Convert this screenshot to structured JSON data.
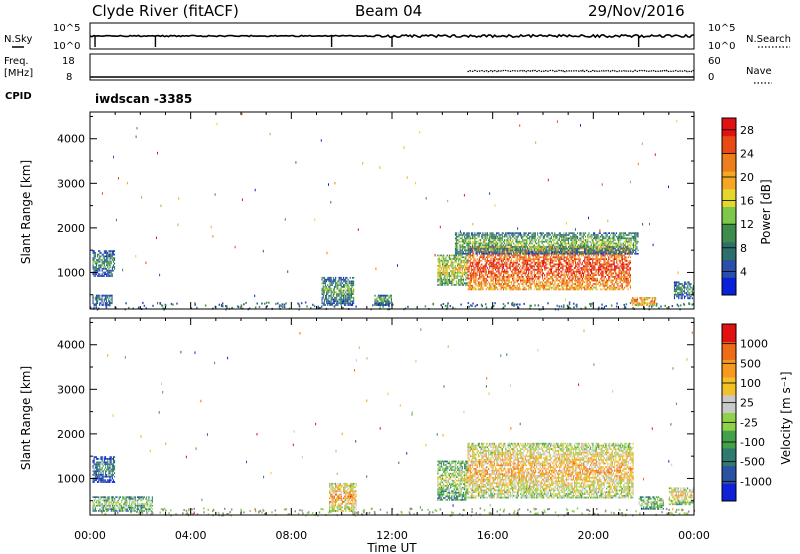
{
  "header": {
    "station": "Clyde River (fitACF)",
    "beam": "Beam 04",
    "date": "29/Nov/2016"
  },
  "strip_nsky": {
    "label": "N.Sky",
    "right_label": "N.Search",
    "left_ticks": [
      "10^5",
      "10^0"
    ],
    "right_ticks": [
      "10^5",
      "10^0"
    ]
  },
  "strip_freq": {
    "label_line1": "Freq.",
    "label_line2": "[MHz]",
    "right_label": "Nave",
    "left_ticks": [
      "18",
      "8"
    ],
    "right_ticks": [
      "60",
      "0"
    ]
  },
  "cpid": {
    "label": "CPID",
    "value": "iwdscan -3385"
  },
  "colors": {
    "power_scale": [
      "#0a1fd8",
      "#2a4fa8",
      "#2f6f6a",
      "#3b8c4d",
      "#7dc84a",
      "#e3d72d",
      "#f5a623",
      "#ee7d1c",
      "#e84a14",
      "#e31212"
    ],
    "velocity_scale": [
      "#1020d8",
      "#2a52a0",
      "#2f7a6e",
      "#44a04a",
      "#8fd14a",
      "#c9c9c9",
      "#f2c12a",
      "#f59a1f",
      "#ee6c18",
      "#e31212"
    ],
    "ground_scatter": "#8c8c8c"
  },
  "chart_data": [
    {
      "type": "heatmap",
      "name": "power-panel",
      "ylabel": "Slant Range [km]",
      "xlabel": "Time UT",
      "x_tick_labels": [
        "00:00",
        "04:00",
        "08:00",
        "12:00",
        "16:00",
        "20:00",
        "00:00"
      ],
      "xlim_hours": [
        0,
        24
      ],
      "y_tick_labels": [
        "1000",
        "2000",
        "3000",
        "4000"
      ],
      "y_ticks": [
        1000,
        2000,
        3000,
        4000
      ],
      "ylim": [
        180,
        4600
      ],
      "colorbar_label": "Power [dB]",
      "colorbar_ticks": [
        "4",
        "8",
        "12",
        "16",
        "20",
        "24",
        "28"
      ],
      "colorbar_range": [
        0,
        30
      ],
      "echo_regions": [
        {
          "t0": 0.1,
          "t1": 1.0,
          "r0": 900,
          "r1": 1500,
          "level": 0.35
        },
        {
          "t0": 0.1,
          "t1": 0.9,
          "r0": 250,
          "r1": 500,
          "level": 0.3
        },
        {
          "t0": 9.2,
          "t1": 10.5,
          "r0": 250,
          "r1": 900,
          "level": 0.4
        },
        {
          "t0": 11.3,
          "t1": 12.0,
          "r0": 250,
          "r1": 500,
          "level": 0.4
        },
        {
          "t0": 13.8,
          "t1": 15.0,
          "r0": 700,
          "r1": 1400,
          "level": 0.6
        },
        {
          "t0": 15.0,
          "t1": 21.5,
          "r0": 600,
          "r1": 1600,
          "level": 0.9
        },
        {
          "t0": 14.5,
          "t1": 21.8,
          "r0": 1400,
          "r1": 1900,
          "level": 0.45
        },
        {
          "t0": 21.5,
          "t1": 22.5,
          "r0": 250,
          "r1": 450,
          "level": 0.8
        },
        {
          "t0": 23.2,
          "t1": 24.0,
          "r0": 400,
          "r1": 800,
          "level": 0.35
        }
      ]
    },
    {
      "type": "heatmap",
      "name": "velocity-panel",
      "ylabel": "Slant Range [km]",
      "xlabel": "Time UT",
      "x_tick_labels": [
        "00:00",
        "04:00",
        "08:00",
        "12:00",
        "16:00",
        "20:00",
        "00:00"
      ],
      "xlim_hours": [
        0,
        24
      ],
      "y_tick_labels": [
        "1000",
        "2000",
        "3000",
        "4000"
      ],
      "y_ticks": [
        1000,
        2000,
        3000,
        4000
      ],
      "ylim": [
        180,
        4600
      ],
      "colorbar_label": "Velocity [m s⁻¹]",
      "colorbar_ticks": [
        "1000",
        "500",
        "100",
        "25",
        "-25",
        "-100",
        "-500",
        "-1000"
      ],
      "echo_regions": [
        {
          "t0": 0.1,
          "t1": 1.0,
          "r0": 900,
          "r1": 1500,
          "level": 0.3
        },
        {
          "t0": 0.1,
          "t1": 2.5,
          "r0": 250,
          "r1": 600,
          "level": 0.5
        },
        {
          "t0": 9.5,
          "t1": 10.6,
          "r0": 250,
          "r1": 900,
          "level": 0.75
        },
        {
          "t0": 13.8,
          "t1": 15.0,
          "r0": 500,
          "r1": 1400,
          "level": 0.55
        },
        {
          "t0": 15.0,
          "t1": 21.6,
          "r0": 550,
          "r1": 1800,
          "level": 0.72
        },
        {
          "t0": 21.8,
          "t1": 22.8,
          "r0": 300,
          "r1": 600,
          "level": 0.5
        },
        {
          "t0": 23.0,
          "t1": 24.0,
          "r0": 400,
          "r1": 800,
          "level": 0.65
        }
      ]
    }
  ],
  "xlabel": "Time UT"
}
